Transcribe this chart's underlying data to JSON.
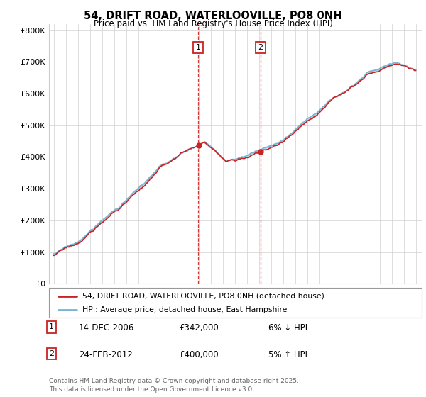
{
  "title": "54, DRIFT ROAD, WATERLOOVILLE, PO8 0NH",
  "subtitle": "Price paid vs. HM Land Registry's House Price Index (HPI)",
  "ylabel_ticks": [
    "£0",
    "£100K",
    "£200K",
    "£300K",
    "£400K",
    "£500K",
    "£600K",
    "£700K",
    "£800K"
  ],
  "ytick_values": [
    0,
    100000,
    200000,
    300000,
    400000,
    500000,
    600000,
    700000,
    800000
  ],
  "ylim": [
    0,
    820000
  ],
  "hpi_color": "#7ab3d4",
  "price_color": "#cc2222",
  "shaded_color": "#c8dff0",
  "marker1_x": 2006.96,
  "marker2_x": 2012.14,
  "marker1_price": 342000,
  "marker2_price": 400000,
  "legend_line1": "54, DRIFT ROAD, WATERLOOVILLE, PO8 0NH (detached house)",
  "legend_line2": "HPI: Average price, detached house, East Hampshire",
  "note1_label": "1",
  "note1_date": "14-DEC-2006",
  "note1_price": "£342,000",
  "note1_pct": "6% ↓ HPI",
  "note2_label": "2",
  "note2_date": "24-FEB-2012",
  "note2_price": "£400,000",
  "note2_pct": "5% ↑ HPI",
  "footer": "Contains HM Land Registry data © Crown copyright and database right 2025.\nThis data is licensed under the Open Government Licence v3.0.",
  "xstart": 1995,
  "xend": 2025
}
